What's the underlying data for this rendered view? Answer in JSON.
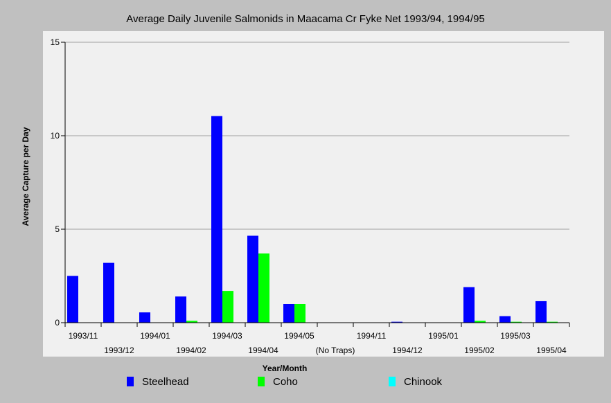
{
  "chart_data": {
    "type": "bar",
    "title": "Average Daily Juvenile Salmonids in Maacama Cr Fyke Net 1993/94, 1994/95",
    "xlabel": "Year/Month",
    "ylabel": "Average Capture per Day",
    "ylim": [
      0,
      15
    ],
    "yticks": [
      0,
      5,
      10,
      15
    ],
    "grid": true,
    "legend_position": "bottom",
    "categories": [
      "1993/11",
      "1993/12",
      "1994/01",
      "1994/02",
      "1994/03",
      "1994/04",
      "1994/05",
      "(No Traps)",
      "1994/11",
      "1994/12",
      "1995/01",
      "1995/02",
      "1995/03",
      "1995/04"
    ],
    "series": [
      {
        "name": "Steelhead",
        "color": "#0000ff",
        "values": [
          2.5,
          3.2,
          0.55,
          1.4,
          11.05,
          4.65,
          1.0,
          0,
          0,
          0.05,
          0,
          1.9,
          0.35,
          1.15
        ]
      },
      {
        "name": "Coho",
        "color": "#00ff00",
        "values": [
          0,
          0,
          0,
          0.1,
          1.7,
          3.7,
          1.0,
          0,
          0,
          0,
          0,
          0.1,
          0.05,
          0.05
        ]
      },
      {
        "name": "Chinook",
        "color": "#00ffff",
        "values": [
          0,
          0,
          0,
          0,
          0,
          0,
          0,
          0,
          0,
          0,
          0,
          0,
          0,
          0
        ]
      }
    ]
  }
}
